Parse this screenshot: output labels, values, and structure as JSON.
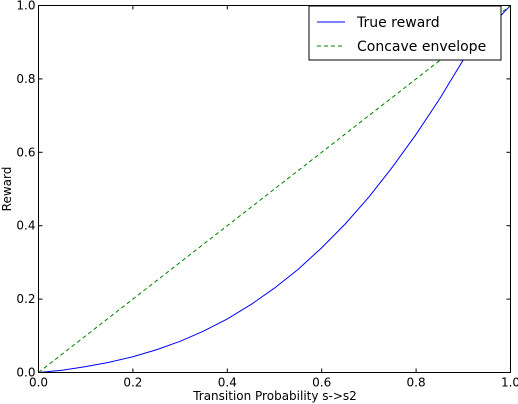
{
  "chart_data": {
    "type": "line",
    "title": "",
    "xlabel": "Transition Probability s->s2",
    "ylabel": "Reward",
    "xlim": [
      0.0,
      1.0
    ],
    "ylim": [
      0.0,
      1.0
    ],
    "xticks": [
      "0.0",
      "0.2",
      "0.4",
      "0.6",
      "0.8",
      "1.0"
    ],
    "yticks": [
      "0.0",
      "0.2",
      "0.4",
      "0.6",
      "0.8",
      "1.0"
    ],
    "grid": false,
    "legend_position": "top-right",
    "series": [
      {
        "name": "True reward",
        "color": "#0000ff",
        "style": "solid",
        "x": [
          0.0,
          0.05,
          0.1,
          0.15,
          0.2,
          0.25,
          0.3,
          0.35,
          0.4,
          0.45,
          0.5,
          0.55,
          0.6,
          0.65,
          0.7,
          0.75,
          0.8,
          0.85,
          0.9,
          0.95,
          1.0
        ],
        "y": [
          0.0,
          0.006,
          0.016,
          0.028,
          0.043,
          0.062,
          0.085,
          0.113,
          0.146,
          0.185,
          0.23,
          0.281,
          0.34,
          0.405,
          0.478,
          0.56,
          0.649,
          0.746,
          0.852,
          0.933,
          1.0
        ]
      },
      {
        "name": "Concave envelope",
        "color": "#008000",
        "style": "dashed",
        "x": [
          0.0,
          1.0
        ],
        "y": [
          0.0,
          1.0
        ]
      }
    ]
  }
}
